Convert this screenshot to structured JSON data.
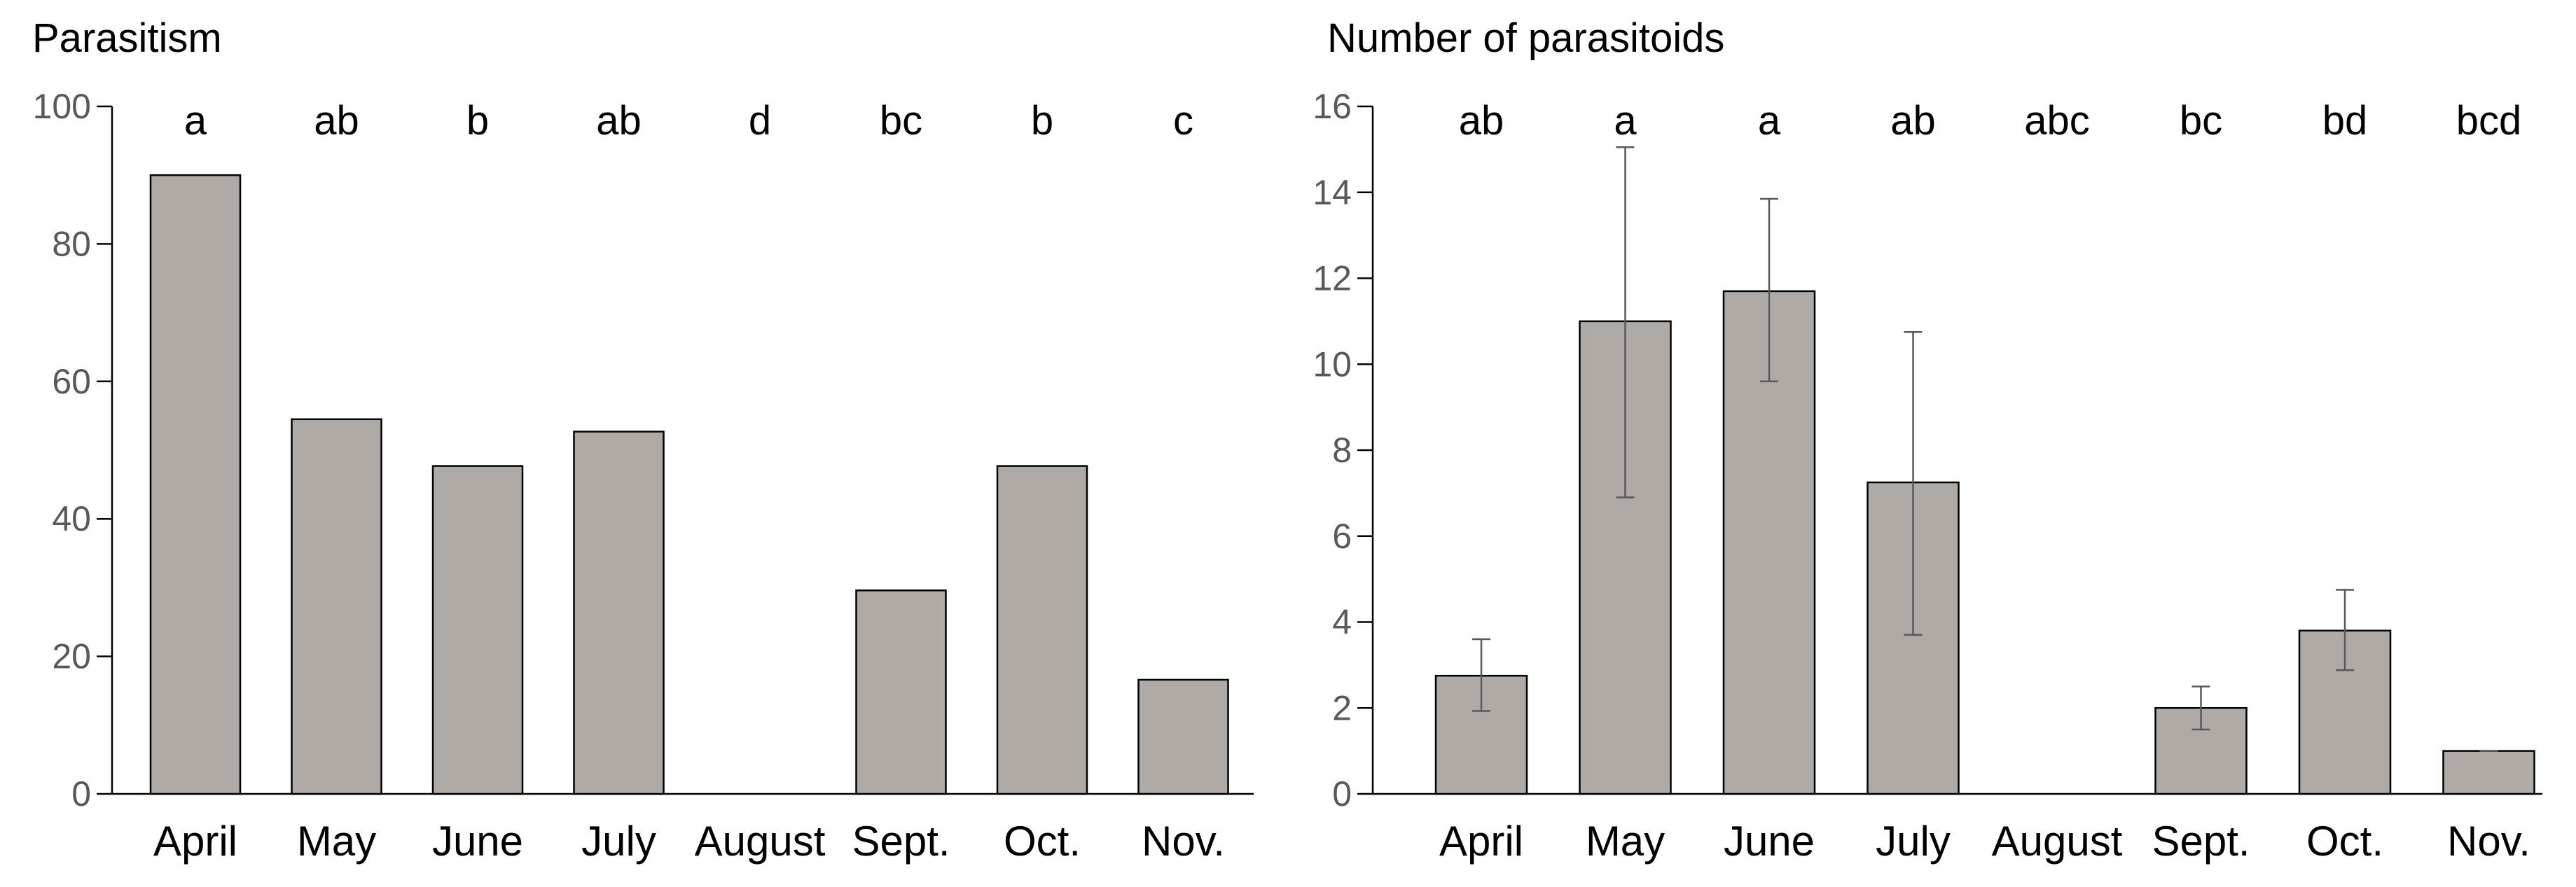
{
  "chart_data": [
    {
      "type": "bar",
      "title": "Parasitism",
      "xlabel": "",
      "ylabel": "",
      "categories": [
        "April",
        "May",
        "June",
        "July",
        "August",
        "Sept.",
        "Oct.",
        "Nov."
      ],
      "values": [
        90,
        54.5,
        47.7,
        52.7,
        0,
        29.6,
        47.7,
        16.6
      ],
      "significance_letters": [
        "a",
        "ab",
        "b",
        "ab",
        "d",
        "bc",
        "b",
        "c"
      ],
      "ylim": [
        0,
        100
      ],
      "yticks": [
        0,
        20,
        40,
        60,
        80,
        100
      ],
      "ytick_labels": [
        "0",
        "20",
        "40",
        "60",
        "80",
        "100"
      ],
      "grid": false,
      "legend": "none",
      "bar_color": "#b0aaa7"
    },
    {
      "type": "bar",
      "title": "Number of parasitoids",
      "xlabel": "",
      "ylabel": "",
      "categories": [
        "April",
        "May",
        "June",
        "July",
        "August",
        "Sept.",
        "Oct.",
        "Nov."
      ],
      "values": [
        2.75,
        11.0,
        11.7,
        7.25,
        0,
        2.0,
        3.8,
        1.0
      ],
      "error_low": [
        1.93,
        6.9,
        9.6,
        3.7,
        null,
        1.5,
        2.88,
        1.0
      ],
      "error_high": [
        3.6,
        15.05,
        13.85,
        10.75,
        null,
        2.5,
        4.75,
        1.0
      ],
      "significance_letters": [
        "ab",
        "a",
        "a",
        "ab",
        "abc",
        "bc",
        "bd",
        "bcd"
      ],
      "ylim": [
        0,
        16
      ],
      "yticks": [
        0,
        2,
        4,
        6,
        8,
        10,
        12,
        14,
        16
      ],
      "ytick_labels": [
        "0",
        "2",
        "4",
        "6",
        "8",
        "10",
        "12",
        "14",
        "16"
      ],
      "grid": false,
      "legend": "none",
      "bar_color": "#b0aaa7",
      "errorbar_color": "#595959"
    }
  ]
}
